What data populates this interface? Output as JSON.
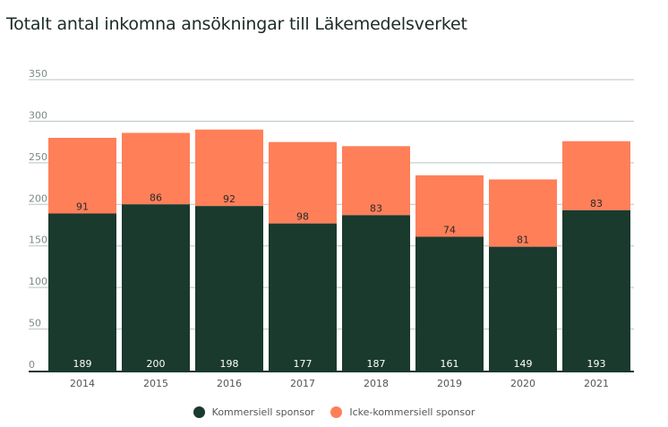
{
  "chart_data": {
    "type": "bar",
    "stacked": true,
    "title": "Totalt antal inkomna ansökningar till Läkemedelsverket",
    "xlabel": "",
    "ylabel": "",
    "ylim": [
      0,
      350
    ],
    "yticks": [
      0,
      50,
      100,
      150,
      200,
      250,
      300,
      350
    ],
    "grid": true,
    "legend_position": "bottom-center",
    "categories": [
      "2014",
      "2015",
      "2016",
      "2017",
      "2018",
      "2019",
      "2020",
      "2021"
    ],
    "series": [
      {
        "name": "Kommersiell sponsor",
        "color": "#1a3a2e",
        "values": [
          189,
          200,
          198,
          177,
          187,
          161,
          149,
          193
        ]
      },
      {
        "name": "Icke-kommersiell sponsor",
        "color": "#ff7f59",
        "values": [
          91,
          86,
          92,
          98,
          83,
          74,
          81,
          83
        ]
      }
    ]
  }
}
